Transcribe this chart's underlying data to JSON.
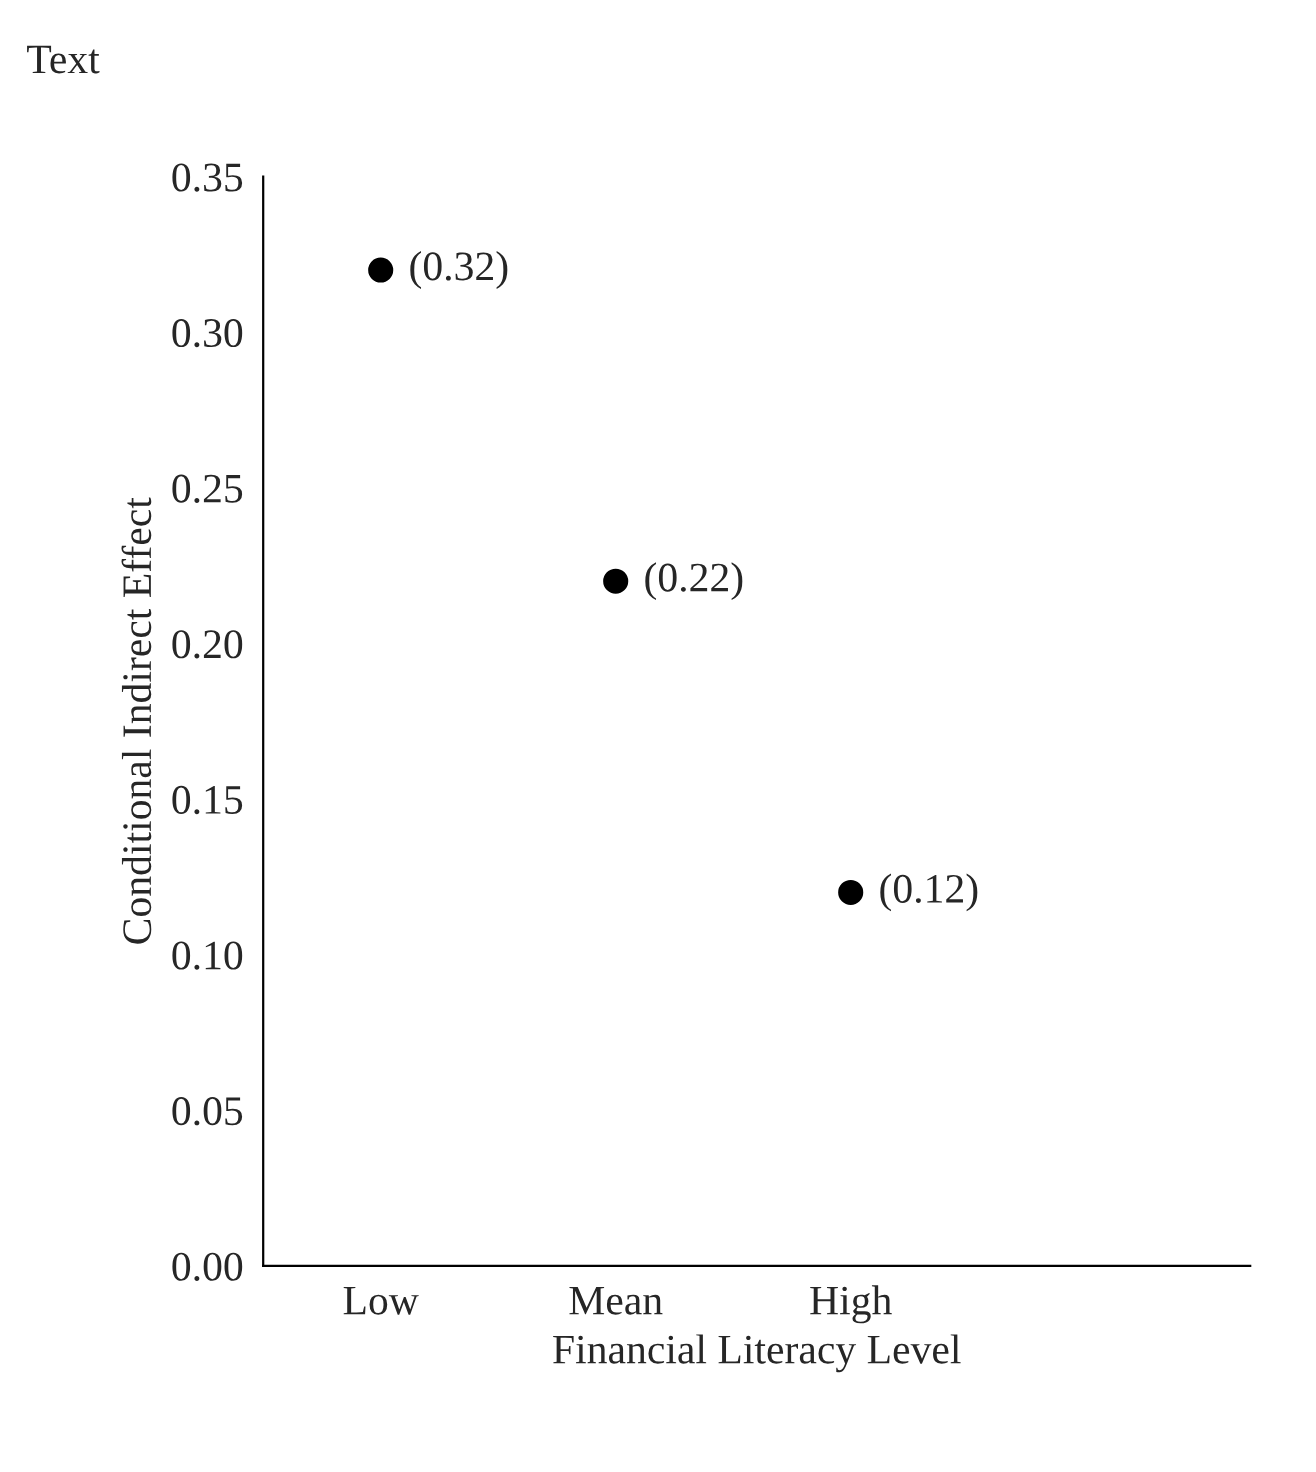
{
  "chart_data": {
    "type": "scatter",
    "title": "Text",
    "ylabel": "Conditional Indirect Effect",
    "xlabel": "Financial Literacy Level",
    "categories": [
      "Low",
      "Mean",
      "High"
    ],
    "series": [
      {
        "color": "#000000",
        "values": [
          0.32,
          0.22,
          0.12
        ],
        "value_labels": [
          "(0.32)",
          "(0.22)",
          "(0.12)"
        ]
      }
    ],
    "ylim": [
      0,
      0.35
    ],
    "yticks": [
      {
        "value": 0,
        "label": "0.00"
      },
      {
        "value": 0.05,
        "label": "0.05"
      },
      {
        "value": 0.1,
        "label": "0.10"
      },
      {
        "value": 0.15,
        "label": "0.15"
      },
      {
        "value": 0.2,
        "label": "0.20"
      },
      {
        "value": 0.25,
        "label": "0.25"
      },
      {
        "value": 0.3,
        "label": "0.30"
      },
      {
        "value": 0.35,
        "label": "0.35"
      }
    ],
    "marker": "circle",
    "grid": false
  }
}
